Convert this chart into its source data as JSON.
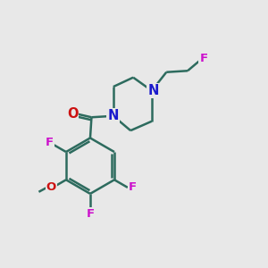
{
  "bg_color": "#e8e8e8",
  "bond_color": "#2d6b5e",
  "N_color": "#1a1acc",
  "O_color": "#cc1111",
  "F_color": "#cc11cc",
  "line_width": 1.8,
  "figsize": [
    3.0,
    3.0
  ],
  "dpi": 100,
  "xlim": [
    0,
    10
  ],
  "ylim": [
    0,
    10
  ]
}
